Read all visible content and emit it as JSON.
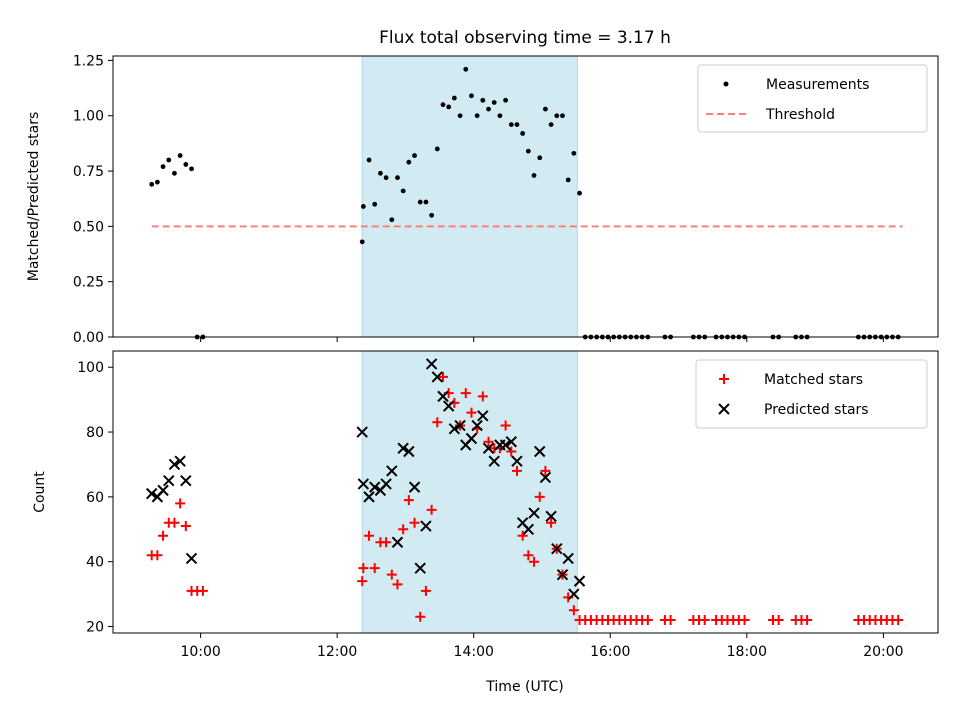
{
  "figure": {
    "title": "Flux total observing time = 3.17 h",
    "xlabel": "Time (UTC)"
  },
  "colors": {
    "band": "#add8e6",
    "measurements": "#000000",
    "threshold": "#ff7f7f",
    "matched": "#ff0000",
    "predicted": "#000000"
  },
  "chart_data": [
    {
      "type": "scatter",
      "title": "Flux total observing time = 3.17 h",
      "xlabel": "",
      "ylabel": "Matched/Predicted stars",
      "xlim": [
        "08:43",
        "20:48"
      ],
      "ylim": [
        0,
        1.27
      ],
      "x_ticks": [
        "10:00",
        "12:00",
        "14:00",
        "16:00",
        "18:00",
        "20:00"
      ],
      "x_ticks_visible": false,
      "y_ticks": [
        "0.00",
        "0.25",
        "0.50",
        "0.75",
        "1.00",
        "1.25"
      ],
      "grid": false,
      "legend": {
        "location": "top-right",
        "entries": [
          "Measurements",
          "Threshold"
        ]
      },
      "shaded_span": {
        "start": "12:22",
        "end": "15:31"
      },
      "threshold": {
        "name": "Threshold",
        "style": "dashed",
        "y": 0.5,
        "x_start": "09:17",
        "x_end": "20:17"
      },
      "series": [
        {
          "name": "Measurements",
          "marker": "dot",
          "points": [
            [
              "09:17",
              0.69
            ],
            [
              "09:22",
              0.7
            ],
            [
              "09:27",
              0.77
            ],
            [
              "09:32",
              0.8
            ],
            [
              "09:37",
              0.74
            ],
            [
              "09:42",
              0.82
            ],
            [
              "09:47",
              0.78
            ],
            [
              "09:52",
              0.76
            ],
            [
              "09:57",
              0.0
            ],
            [
              "10:02",
              0.0
            ],
            [
              "12:22",
              0.43
            ],
            [
              "12:23",
              0.59
            ],
            [
              "12:28",
              0.8
            ],
            [
              "12:33",
              0.6
            ],
            [
              "12:38",
              0.74
            ],
            [
              "12:43",
              0.72
            ],
            [
              "12:48",
              0.53
            ],
            [
              "12:53",
              0.72
            ],
            [
              "12:58",
              0.66
            ],
            [
              "13:03",
              0.79
            ],
            [
              "13:08",
              0.82
            ],
            [
              "13:13",
              0.61
            ],
            [
              "13:18",
              0.61
            ],
            [
              "13:23",
              0.55
            ],
            [
              "13:28",
              0.85
            ],
            [
              "13:33",
              1.05
            ],
            [
              "13:38",
              1.04
            ],
            [
              "13:43",
              1.08
            ],
            [
              "13:48",
              1.0
            ],
            [
              "13:53",
              1.21
            ],
            [
              "13:58",
              1.09
            ],
            [
              "14:03",
              1.0
            ],
            [
              "14:08",
              1.07
            ],
            [
              "14:13",
              1.03
            ],
            [
              "14:18",
              1.06
            ],
            [
              "14:23",
              1.0
            ],
            [
              "14:28",
              1.07
            ],
            [
              "14:33",
              0.96
            ],
            [
              "14:38",
              0.96
            ],
            [
              "14:43",
              0.92
            ],
            [
              "14:48",
              0.84
            ],
            [
              "14:53",
              0.73
            ],
            [
              "14:58",
              0.81
            ],
            [
              "15:03",
              1.03
            ],
            [
              "15:08",
              0.96
            ],
            [
              "15:13",
              1.0
            ],
            [
              "15:18",
              1.0
            ],
            [
              "15:23",
              0.71
            ],
            [
              "15:28",
              0.83
            ],
            [
              "15:33",
              0.65
            ],
            [
              "15:38",
              0.0
            ],
            [
              "15:43",
              0.0
            ],
            [
              "15:48",
              0.0
            ],
            [
              "15:53",
              0.0
            ],
            [
              "15:58",
              0.0
            ],
            [
              "16:03",
              0.0
            ],
            [
              "16:08",
              0.0
            ],
            [
              "16:13",
              0.0
            ],
            [
              "16:18",
              0.0
            ],
            [
              "16:23",
              0.0
            ],
            [
              "16:28",
              0.0
            ],
            [
              "16:33",
              0.0
            ],
            [
              "16:48",
              0.0
            ],
            [
              "16:53",
              0.0
            ],
            [
              "17:13",
              0.0
            ],
            [
              "17:18",
              0.0
            ],
            [
              "17:23",
              0.0
            ],
            [
              "17:33",
              0.0
            ],
            [
              "17:38",
              0.0
            ],
            [
              "17:43",
              0.0
            ],
            [
              "17:48",
              0.0
            ],
            [
              "17:53",
              0.0
            ],
            [
              "17:58",
              0.0
            ],
            [
              "18:23",
              0.0
            ],
            [
              "18:28",
              0.0
            ],
            [
              "18:43",
              0.0
            ],
            [
              "18:48",
              0.0
            ],
            [
              "18:53",
              0.0
            ],
            [
              "19:38",
              0.0
            ],
            [
              "19:43",
              0.0
            ],
            [
              "19:48",
              0.0
            ],
            [
              "19:53",
              0.0
            ],
            [
              "19:58",
              0.0
            ],
            [
              "20:03",
              0.0
            ],
            [
              "20:08",
              0.0
            ],
            [
              "20:13",
              0.0
            ]
          ]
        }
      ]
    },
    {
      "type": "scatter",
      "xlabel": "Time (UTC)",
      "ylabel": "Count",
      "xlim": [
        "08:43",
        "20:48"
      ],
      "ylim": [
        18,
        105
      ],
      "x_ticks": [
        "10:00",
        "12:00",
        "14:00",
        "16:00",
        "18:00",
        "20:00"
      ],
      "y_ticks": [
        "20",
        "40",
        "60",
        "80",
        "100"
      ],
      "grid": false,
      "legend": {
        "location": "top-right",
        "entries": [
          "Matched stars",
          "Predicted stars"
        ]
      },
      "shaded_span": {
        "start": "12:22",
        "end": "15:31"
      },
      "series": [
        {
          "name": "Matched stars",
          "marker": "plus",
          "points": [
            [
              "09:17",
              42
            ],
            [
              "09:22",
              42
            ],
            [
              "09:27",
              48
            ],
            [
              "09:32",
              52
            ],
            [
              "09:37",
              52
            ],
            [
              "09:42",
              58
            ],
            [
              "09:47",
              51
            ],
            [
              "09:52",
              31
            ],
            [
              "09:57",
              31
            ],
            [
              "10:02",
              31
            ],
            [
              "12:22",
              34
            ],
            [
              "12:23",
              38
            ],
            [
              "12:28",
              48
            ],
            [
              "12:33",
              38
            ],
            [
              "12:38",
              46
            ],
            [
              "12:43",
              46
            ],
            [
              "12:48",
              36
            ],
            [
              "12:53",
              33
            ],
            [
              "12:58",
              50
            ],
            [
              "13:03",
              59
            ],
            [
              "13:08",
              52
            ],
            [
              "13:13",
              23
            ],
            [
              "13:18",
              31
            ],
            [
              "13:23",
              56
            ],
            [
              "13:28",
              83
            ],
            [
              "13:33",
              97
            ],
            [
              "13:38",
              92
            ],
            [
              "13:43",
              89
            ],
            [
              "13:48",
              82
            ],
            [
              "13:53",
              92
            ],
            [
              "13:58",
              86
            ],
            [
              "14:03",
              81
            ],
            [
              "14:08",
              91
            ],
            [
              "14:13",
              77
            ],
            [
              "14:18",
              75
            ],
            [
              "14:23",
              75
            ],
            [
              "14:28",
              82
            ],
            [
              "14:33",
              74
            ],
            [
              "14:38",
              68
            ],
            [
              "14:43",
              48
            ],
            [
              "14:48",
              42
            ],
            [
              "14:53",
              40
            ],
            [
              "14:58",
              60
            ],
            [
              "15:03",
              68
            ],
            [
              "15:08",
              52
            ],
            [
              "15:13",
              44
            ],
            [
              "15:18",
              36
            ],
            [
              "15:23",
              29
            ],
            [
              "15:28",
              25
            ],
            [
              "15:33",
              22
            ],
            [
              "15:38",
              22
            ],
            [
              "15:43",
              22
            ],
            [
              "15:48",
              22
            ],
            [
              "15:53",
              22
            ],
            [
              "15:58",
              22
            ],
            [
              "16:03",
              22
            ],
            [
              "16:08",
              22
            ],
            [
              "16:13",
              22
            ],
            [
              "16:18",
              22
            ],
            [
              "16:23",
              22
            ],
            [
              "16:28",
              22
            ],
            [
              "16:33",
              22
            ],
            [
              "16:48",
              22
            ],
            [
              "16:53",
              22
            ],
            [
              "17:13",
              22
            ],
            [
              "17:18",
              22
            ],
            [
              "17:23",
              22
            ],
            [
              "17:33",
              22
            ],
            [
              "17:38",
              22
            ],
            [
              "17:43",
              22
            ],
            [
              "17:48",
              22
            ],
            [
              "17:53",
              22
            ],
            [
              "17:58",
              22
            ],
            [
              "18:23",
              22
            ],
            [
              "18:28",
              22
            ],
            [
              "18:43",
              22
            ],
            [
              "18:48",
              22
            ],
            [
              "18:53",
              22
            ],
            [
              "19:38",
              22
            ],
            [
              "19:43",
              22
            ],
            [
              "19:48",
              22
            ],
            [
              "19:53",
              22
            ],
            [
              "19:58",
              22
            ],
            [
              "20:03",
              22
            ],
            [
              "20:08",
              22
            ],
            [
              "20:13",
              22
            ]
          ]
        },
        {
          "name": "Predicted stars",
          "marker": "x",
          "points": [
            [
              "09:17",
              61
            ],
            [
              "09:22",
              60
            ],
            [
              "09:27",
              62
            ],
            [
              "09:32",
              65
            ],
            [
              "09:37",
              70
            ],
            [
              "09:42",
              71
            ],
            [
              "09:47",
              65
            ],
            [
              "09:52",
              41
            ],
            [
              "12:22",
              80
            ],
            [
              "12:23",
              64
            ],
            [
              "12:28",
              60
            ],
            [
              "12:33",
              63
            ],
            [
              "12:38",
              62
            ],
            [
              "12:43",
              64
            ],
            [
              "12:48",
              68
            ],
            [
              "12:53",
              46
            ],
            [
              "12:58",
              75
            ],
            [
              "13:03",
              74
            ],
            [
              "13:08",
              63
            ],
            [
              "13:13",
              38
            ],
            [
              "13:18",
              51
            ],
            [
              "13:23",
              101
            ],
            [
              "13:28",
              97
            ],
            [
              "13:33",
              91
            ],
            [
              "13:38",
              88
            ],
            [
              "13:43",
              81
            ],
            [
              "13:48",
              82
            ],
            [
              "13:53",
              76
            ],
            [
              "13:58",
              78
            ],
            [
              "14:03",
              82
            ],
            [
              "14:08",
              85
            ],
            [
              "14:13",
              75
            ],
            [
              "14:18",
              71
            ],
            [
              "14:23",
              76
            ],
            [
              "14:28",
              76
            ],
            [
              "14:33",
              77
            ],
            [
              "14:38",
              71
            ],
            [
              "14:43",
              52
            ],
            [
              "14:48",
              50
            ],
            [
              "14:53",
              55
            ],
            [
              "14:58",
              74
            ],
            [
              "15:03",
              66
            ],
            [
              "15:08",
              54
            ],
            [
              "15:13",
              44
            ],
            [
              "15:18",
              36
            ],
            [
              "15:23",
              41
            ],
            [
              "15:28",
              30
            ],
            [
              "15:33",
              34
            ]
          ]
        }
      ]
    }
  ]
}
